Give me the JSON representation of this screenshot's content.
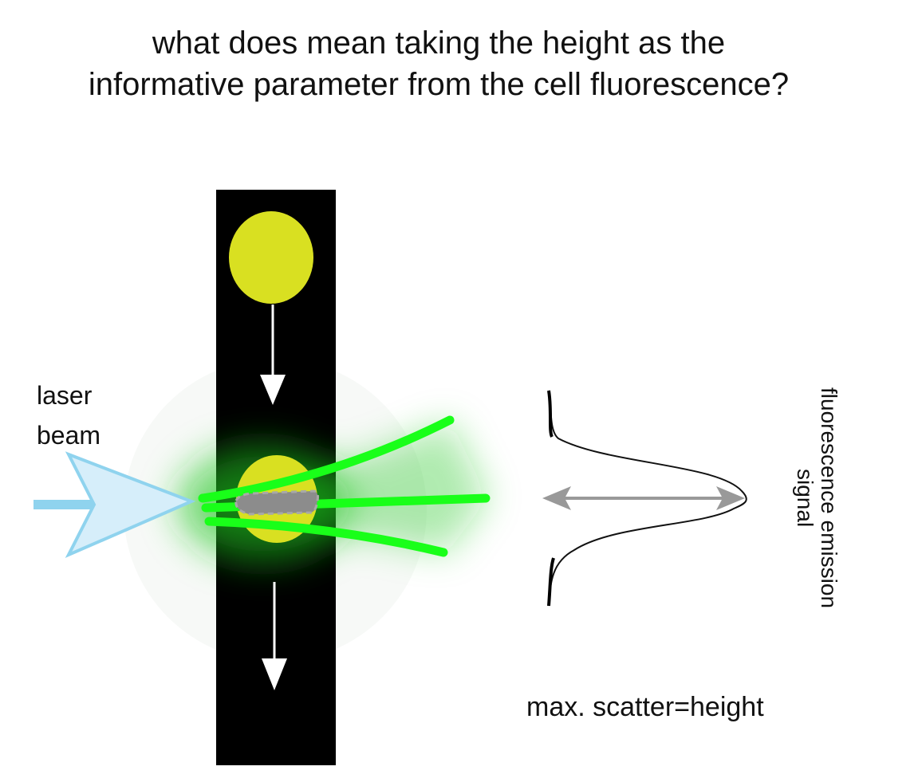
{
  "title": {
    "line1": "what does mean taking the height as the",
    "line2": "informative parameter from the cell fluorescence?"
  },
  "labels": {
    "laser_line1": "laser",
    "laser_line2": "beam",
    "signal_line1": "fluorescence emission",
    "signal_line2": "signal",
    "caption": "max. scatter=height"
  },
  "colors": {
    "channel": "#000000",
    "cell": "#d9e021",
    "emission": "#19ff19",
    "laser": "#8fd3ee",
    "measure_arrow": "#999999"
  }
}
